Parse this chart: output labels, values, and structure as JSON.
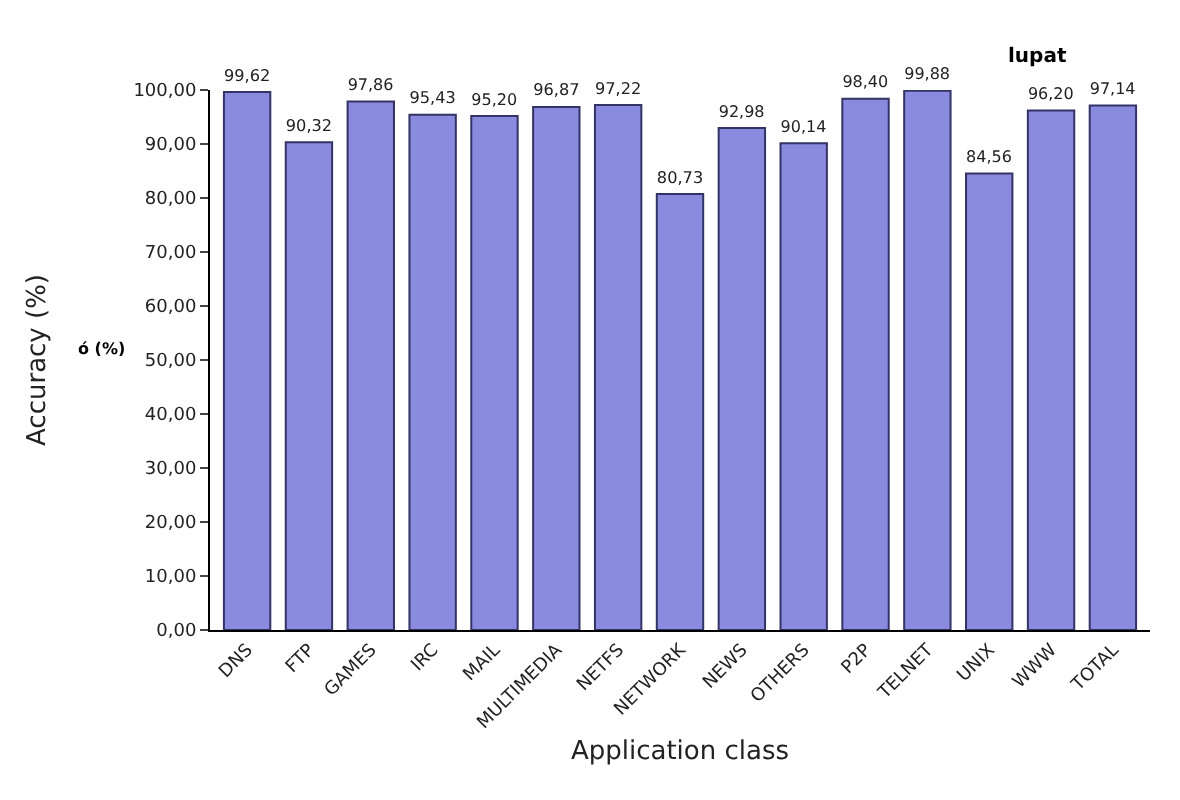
{
  "chart_data": {
    "type": "bar",
    "xlabel": "Application class",
    "ylabel": "Accuracy (%)",
    "annotations": [
      "lupat",
      "ó (%)"
    ],
    "categories": [
      "DNS",
      "FTP",
      "GAMES",
      "IRC",
      "MAIL",
      "MULTIMEDIA",
      "NETFS",
      "NETWORK",
      "NEWS",
      "OTHERS",
      "P2P",
      "TELNET",
      "UNIX",
      "WWW",
      "TOTAL"
    ],
    "values": [
      99.62,
      90.32,
      97.86,
      95.43,
      95.2,
      96.87,
      97.22,
      80.73,
      92.98,
      90.14,
      98.4,
      99.88,
      84.56,
      96.2,
      97.14
    ],
    "value_labels": [
      "99,62",
      "90,32",
      "97,86",
      "95,43",
      "95,20",
      "96,87",
      "97,22",
      "80,73",
      "92,98",
      "90,14",
      "98,40",
      "99,88",
      "84,56",
      "96,20",
      "97,14"
    ],
    "color": "#8a8ade",
    "ylim": [
      0,
      100
    ],
    "yticks": [
      {
        "value": 0,
        "label": "0,00"
      },
      {
        "value": 10,
        "label": "10,00"
      },
      {
        "value": 20,
        "label": "20,00"
      },
      {
        "value": 30,
        "label": "30,00"
      },
      {
        "value": 40,
        "label": "40,00"
      },
      {
        "value": 50,
        "label": "50,00"
      },
      {
        "value": 60,
        "label": "60,00"
      },
      {
        "value": 70,
        "label": "70,00"
      },
      {
        "value": 80,
        "label": "80,00"
      },
      {
        "value": 90,
        "label": "90,00"
      },
      {
        "value": 100,
        "label": "100,00"
      }
    ],
    "grid": false,
    "legend": false
  }
}
